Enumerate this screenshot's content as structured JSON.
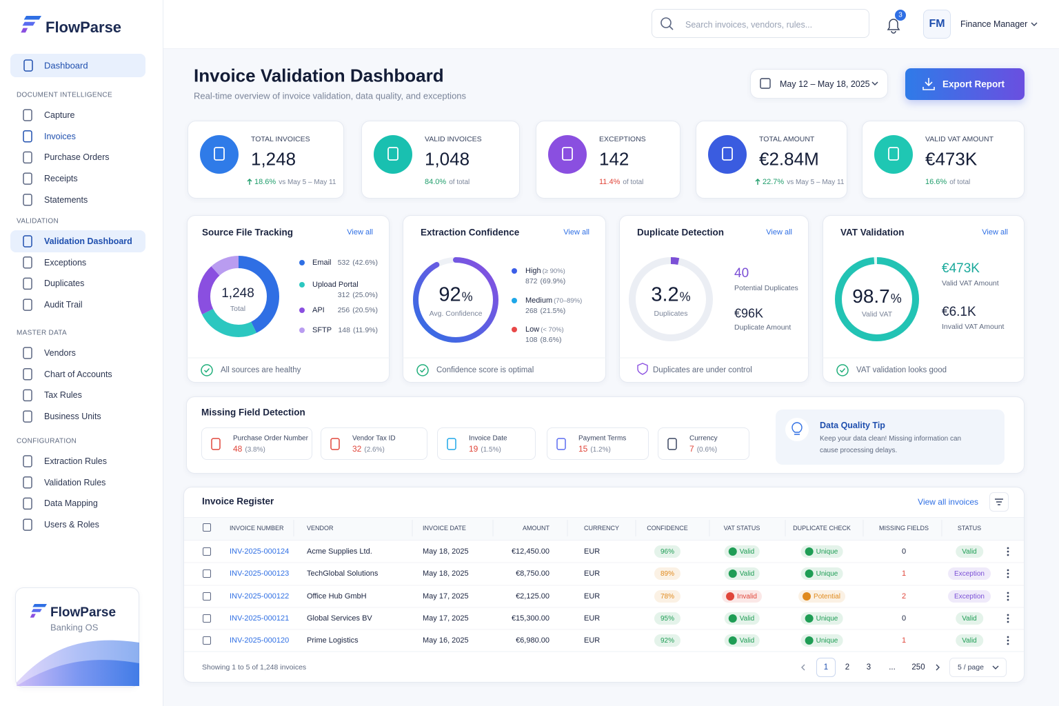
{
  "brand": {
    "name": "FlowParse"
  },
  "search": {
    "placeholder": "Search invoices, vendors, rules..."
  },
  "notifications": {
    "count": 3
  },
  "user": {
    "initials": "FM",
    "role": "Finance Manager"
  },
  "nav": {
    "top": "Dashboard",
    "sections": [
      {
        "title": "DOCUMENT INTELLIGENCE",
        "items": [
          "Capture",
          "Invoices",
          "Purchase Orders",
          "Receipts",
          "Statements"
        ]
      },
      {
        "title": "VALIDATION",
        "items": [
          "Validation Dashboard",
          "Exceptions",
          "Duplicates",
          "Audit Trail"
        ]
      },
      {
        "title": "MASTER DATA",
        "items": [
          "Vendors",
          "Chart of Accounts",
          "Tax Rules",
          "Business Units"
        ]
      },
      {
        "title": "CONFIGURATION",
        "items": [
          "Extraction Rules",
          "Validation Rules",
          "Data Mapping",
          "Users & Roles"
        ]
      }
    ]
  },
  "promo": {
    "name": "FlowParse",
    "subtitle": "Banking OS"
  },
  "page": {
    "title": "Invoice Validation Dashboard",
    "subtitle": "Real-time overview of invoice validation, data quality, and exceptions",
    "date_range": "May 12 – May 18, 2025",
    "export": "Export Report"
  },
  "kpis": [
    {
      "label": "TOTAL INVOICES",
      "value": "1,248",
      "delta": "18.6%",
      "note": "vs May 5 – May 11",
      "color": "#2f7be8",
      "delta_color": "#1f9d6b"
    },
    {
      "label": "VALID INVOICES",
      "value": "1,048",
      "delta": "84.0%",
      "note": "of total",
      "color": "#19c0b0",
      "delta_color": "#1f9d6b"
    },
    {
      "label": "EXCEPTIONS",
      "value": "142",
      "delta": "11.4%",
      "note": "of total",
      "color": "#8a4fe0",
      "delta_color": "#e0453a"
    },
    {
      "label": "TOTAL AMOUNT",
      "value": "€2.84M",
      "delta": "22.7%",
      "note": "vs May 5 – May 11",
      "color": "#3a5ce0",
      "delta_color": "#1f9d6b"
    },
    {
      "label": "VALID VAT AMOUNT",
      "value": "€473K",
      "delta": "16.6%",
      "note": "of total",
      "color": "#1fc7b3",
      "delta_color": "#1f9d6b"
    }
  ],
  "source_tracking": {
    "title": "Source File Tracking",
    "link": "View all",
    "total": "1,248",
    "total_label": "Total",
    "sources": [
      {
        "name": "Email",
        "count": 532,
        "pct": "(42.6%)",
        "color": "#2f6fe4"
      },
      {
        "name": "Upload Portal",
        "count": 312,
        "pct": "(25.0%)",
        "color": "#2cc7c0"
      },
      {
        "name": "API",
        "count": 256,
        "pct": "(20.5%)",
        "color": "#8a4fe0"
      },
      {
        "name": "SFTP",
        "count": 148,
        "pct": "(11.9%)",
        "color": "#b99cf0"
      }
    ],
    "footer": "All sources are healthy"
  },
  "extraction_confidence": {
    "title": "Extraction Confidence",
    "link": "View all",
    "value": 92,
    "unit": "%",
    "label": "Avg. Confidence",
    "levels": [
      {
        "name": "High",
        "range": "(≥ 90%)",
        "count": 872,
        "pct": "(69.9%)",
        "color": "#3b5ee8"
      },
      {
        "name": "Medium",
        "range": "(70–89%)",
        "count": 268,
        "pct": "(21.5%)",
        "color": "#1ea7e8"
      },
      {
        "name": "Low",
        "range": "(< 70%)",
        "count": 108,
        "pct": "(8.6%)",
        "color": "#e84848"
      }
    ],
    "footer": "Confidence score is optimal"
  },
  "duplicate_detection": {
    "title": "Duplicate Detection",
    "link": "View all",
    "value": 3.2,
    "unit": "%",
    "label": "Duplicates",
    "count": 40,
    "count_label": "Potential Duplicates",
    "amount": "€96K",
    "amount_label": "Duplicate Amount",
    "footer": "Duplicates are under control"
  },
  "vat_validation": {
    "title": "VAT Validation",
    "link": "View all",
    "value": 98.7,
    "unit": "%",
    "label": "Valid VAT",
    "valid_amount": "€473K",
    "valid_label": "Valid VAT Amount",
    "invalid_amount": "€6.1K",
    "invalid_label": "Invalid VAT Amount",
    "footer": "VAT validation looks good"
  },
  "missing_fields": {
    "title": "Missing Field Detection",
    "fields": [
      {
        "name": "Purchase Order Number",
        "count": 48,
        "pct": "(3.8%)"
      },
      {
        "name": "Vendor Tax ID",
        "count": 32,
        "pct": "(2.6%)"
      },
      {
        "name": "Invoice Date",
        "count": 19,
        "pct": "(1.5%)"
      },
      {
        "name": "Payment Terms",
        "count": 15,
        "pct": "(1.2%)"
      },
      {
        "name": "Currency",
        "count": 7,
        "pct": "(0.6%)"
      }
    ],
    "tip": {
      "title": "Data Quality Tip",
      "text": "Keep your data clean! Missing information can cause processing delays."
    }
  },
  "invoice_register": {
    "title": "Invoice Register",
    "link": "View all invoices",
    "columns": [
      "INVOICE NUMBER",
      "VENDOR",
      "INVOICE DATE",
      "AMOUNT",
      "CURRENCY",
      "CONFIDENCE",
      "VAT STATUS",
      "DUPLICATE CHECK",
      "MISSING FIELDS",
      "STATUS"
    ],
    "rows": [
      [
        "INV-2025-000124",
        "Acme Supplies Ltd.",
        "May 18, 2025",
        "€12,450.00",
        "EUR",
        {
          "text": "96%",
          "color": "#1f9d55"
        },
        {
          "text": "Valid",
          "color": "#1f9d55"
        },
        {
          "text": "Unique",
          "color": "#1f9d55"
        },
        {
          "text": "0",
          "color": "#1b2440"
        },
        {
          "text": "Valid",
          "color": "#1f9d55"
        }
      ],
      [
        "INV-2025-000123",
        "TechGlobal Solutions",
        "May 18, 2025",
        "€8,750.00",
        "EUR",
        {
          "text": "89%",
          "color": "#e08a1e"
        },
        {
          "text": "Valid",
          "color": "#1f9d55"
        },
        {
          "text": "Unique",
          "color": "#1f9d55"
        },
        {
          "text": "1",
          "color": "#e0453a"
        },
        {
          "text": "Exception",
          "color": "#7b4fd6"
        }
      ],
      [
        "INV-2025-000122",
        "Office Hub GmbH",
        "May 17, 2025",
        "€2,125.00",
        "EUR",
        {
          "text": "78%",
          "color": "#e08a1e"
        },
        {
          "text": "Invalid",
          "color": "#e0453a"
        },
        {
          "text": "Potential",
          "color": "#e08a1e"
        },
        {
          "text": "2",
          "color": "#e0453a"
        },
        {
          "text": "Exception",
          "color": "#7b4fd6"
        }
      ],
      [
        "INV-2025-000121",
        "Global Services BV",
        "May 17, 2025",
        "€15,300.00",
        "EUR",
        {
          "text": "95%",
          "color": "#1f9d55"
        },
        {
          "text": "Valid",
          "color": "#1f9d55"
        },
        {
          "text": "Unique",
          "color": "#1f9d55"
        },
        {
          "text": "0",
          "color": "#1b2440"
        },
        {
          "text": "Valid",
          "color": "#1f9d55"
        }
      ],
      [
        "INV-2025-000120",
        "Prime Logistics",
        "May 16, 2025",
        "€6,980.00",
        "EUR",
        {
          "text": "92%",
          "color": "#1f9d55"
        },
        {
          "text": "Valid",
          "color": "#1f9d55"
        },
        {
          "text": "Unique",
          "color": "#1f9d55"
        },
        {
          "text": "1",
          "color": "#e0453a"
        },
        {
          "text": "Valid",
          "color": "#1f9d55"
        }
      ]
    ],
    "footer": "Showing 1 to 5 of 1,248 invoices",
    "pages": [
      "1",
      "2",
      "3",
      "...",
      "250"
    ],
    "page_size": "5 / page"
  }
}
